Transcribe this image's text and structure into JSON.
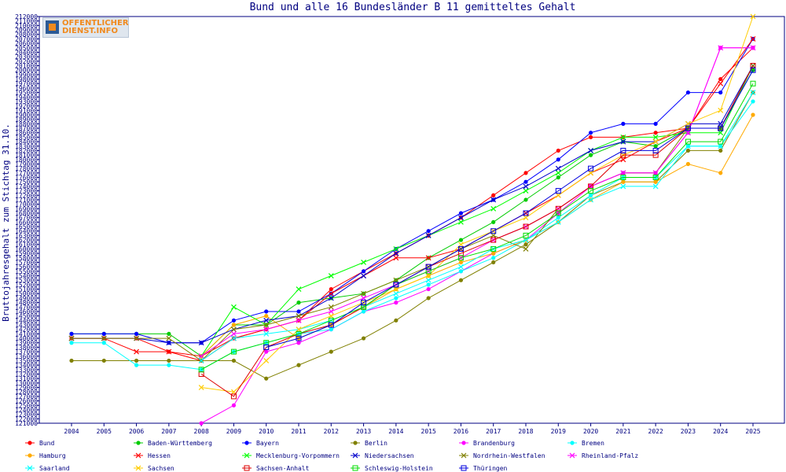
{
  "logo": {
    "line1": "OFFENTLICHER",
    "line2": "DIENST.INFO"
  },
  "chart_data": {
    "type": "line",
    "title": "Bund und alle 16 Bundesländer B 11 gemitteltes Gehalt",
    "xlabel": "",
    "ylabel": "Bruttojahresgehalt zum Stichtag 31.10.",
    "ylim": [
      121000,
      212000
    ],
    "y_tick_step": 1000,
    "grid": false,
    "legend_position": "bottom",
    "categories": [
      "2004",
      "2005",
      "2006",
      "2007",
      "2008",
      "2009",
      "2010",
      "2011",
      "2012",
      "2013",
      "2014",
      "2015",
      "2016",
      "2017",
      "2018",
      "2019",
      "2020",
      "2021",
      "2022",
      "2023",
      "2024",
      "2025"
    ],
    "series": [
      {
        "name": "Bund",
        "color": "#ff0000",
        "marker": "dot",
        "values": [
          140000,
          140000,
          140000,
          137000,
          135000,
          140000,
          142000,
          144000,
          151000,
          155000,
          159000,
          163000,
          167000,
          172000,
          177000,
          182000,
          185000,
          185000,
          186000,
          187000,
          198000,
          205000
        ]
      },
      {
        "name": "Baden-Württemberg",
        "color": "#00cc00",
        "marker": "dot",
        "values": [
          141000,
          141000,
          141000,
          141000,
          136000,
          143000,
          143000,
          148000,
          149000,
          150000,
          153000,
          158000,
          162000,
          166000,
          171000,
          176000,
          181000,
          184000,
          183000,
          187000,
          187000,
          200000
        ]
      },
      {
        "name": "Bayern",
        "color": "#0000ff",
        "marker": "dot",
        "values": [
          141000,
          141000,
          141000,
          139000,
          139000,
          144000,
          146000,
          146000,
          150000,
          155000,
          160000,
          164000,
          168000,
          171000,
          175000,
          180000,
          186000,
          188000,
          188000,
          195000,
          195000,
          207000
        ]
      },
      {
        "name": "Berlin",
        "color": "#808000",
        "marker": "dot",
        "values": [
          135000,
          135000,
          135000,
          135000,
          135000,
          135000,
          131000,
          134000,
          137000,
          140000,
          144000,
          149000,
          153000,
          157000,
          161000,
          166000,
          172000,
          175000,
          175000,
          182000,
          182000,
          195000
        ]
      },
      {
        "name": "Brandenburg",
        "color": "#ff00ff",
        "marker": "dot",
        "values": [
          null,
          null,
          null,
          null,
          121000,
          125000,
          137000,
          139000,
          142000,
          146000,
          148000,
          151000,
          155000,
          159000,
          162000,
          168000,
          174000,
          177000,
          177000,
          186000,
          205000,
          205000
        ]
      },
      {
        "name": "Bremen",
        "color": "#00ffff",
        "marker": "dot",
        "values": [
          139000,
          139000,
          134000,
          134000,
          133000,
          137000,
          139000,
          141000,
          142000,
          146000,
          149000,
          152000,
          155000,
          158000,
          162000,
          167000,
          172000,
          176000,
          176000,
          183000,
          183000,
          193000
        ]
      },
      {
        "name": "Hamburg",
        "color": "#ffaa00",
        "marker": "dot",
        "values": [
          null,
          null,
          null,
          null,
          136000,
          143000,
          145000,
          140000,
          143000,
          147000,
          151000,
          154000,
          157000,
          159000,
          162000,
          166000,
          171000,
          175000,
          175000,
          179000,
          177000,
          190000
        ]
      },
      {
        "name": "Hessen",
        "color": "#ff0000",
        "marker": "x",
        "values": [
          140000,
          140000,
          137000,
          137000,
          136000,
          140000,
          142000,
          144000,
          150000,
          154000,
          158000,
          158000,
          160000,
          164000,
          168000,
          172000,
          177000,
          180000,
          184000,
          187000,
          197000,
          207000
        ]
      },
      {
        "name": "Mecklenburg-Vorpommern",
        "color": "#00ff00",
        "marker": "x",
        "values": [
          null,
          null,
          null,
          null,
          136000,
          147000,
          143000,
          151000,
          154000,
          157000,
          160000,
          163000,
          166000,
          169000,
          173000,
          177000,
          182000,
          185000,
          185000,
          186000,
          186000,
          201000
        ]
      },
      {
        "name": "Niedersachsen",
        "color": "#0000cc",
        "marker": "x",
        "values": [
          140000,
          140000,
          140000,
          139000,
          139000,
          142000,
          144000,
          145000,
          149000,
          154000,
          159000,
          163000,
          167000,
          171000,
          174000,
          178000,
          182000,
          184000,
          184000,
          188000,
          188000,
          201000
        ]
      },
      {
        "name": "Nordrhein-Westfalen",
        "color": "#808000",
        "marker": "x",
        "values": [
          140000,
          140000,
          140000,
          140000,
          135000,
          142000,
          143000,
          145000,
          147000,
          150000,
          153000,
          156000,
          160000,
          163000,
          160000,
          169000,
          174000,
          177000,
          177000,
          187000,
          187000,
          201000
        ]
      },
      {
        "name": "Rheinland-Pfalz",
        "color": "#ff00ff",
        "marker": "x",
        "values": [
          null,
          null,
          null,
          null,
          136000,
          141000,
          142000,
          144000,
          146000,
          149000,
          152000,
          155000,
          158000,
          162000,
          165000,
          169000,
          174000,
          177000,
          177000,
          186000,
          205000,
          205000
        ]
      },
      {
        "name": "Saarland",
        "color": "#00ffff",
        "marker": "x",
        "values": [
          null,
          null,
          null,
          null,
          135000,
          140000,
          141000,
          142000,
          144000,
          147000,
          150000,
          153000,
          156000,
          160000,
          162000,
          166000,
          171000,
          174000,
          174000,
          183000,
          183000,
          195000
        ]
      },
      {
        "name": "Sachsen",
        "color": "#ffcc00",
        "marker": "x",
        "values": [
          null,
          null,
          null,
          null,
          129000,
          128000,
          135000,
          142000,
          145000,
          148000,
          151000,
          154000,
          161000,
          164000,
          167000,
          172000,
          177000,
          181000,
          184000,
          188000,
          191000,
          212000
        ]
      },
      {
        "name": "Sachsen-Anhalt",
        "color": "#dd0000",
        "marker": "square",
        "values": [
          null,
          null,
          null,
          null,
          132000,
          127000,
          138000,
          141000,
          143000,
          147000,
          152000,
          156000,
          159000,
          162000,
          165000,
          169000,
          174000,
          181000,
          181000,
          187000,
          187000,
          201000
        ]
      },
      {
        "name": "Schleswig-Holstein",
        "color": "#00dd00",
        "marker": "square",
        "values": [
          null,
          null,
          null,
          null,
          133000,
          137000,
          139000,
          141000,
          144000,
          147000,
          152000,
          155000,
          158000,
          160000,
          163000,
          168000,
          173000,
          176000,
          176000,
          184000,
          184000,
          197000
        ]
      },
      {
        "name": "Thüringen",
        "color": "#0000dd",
        "marker": "square",
        "values": [
          null,
          null,
          null,
          null,
          null,
          null,
          138000,
          140000,
          143000,
          148000,
          152000,
          156000,
          160000,
          164000,
          168000,
          173000,
          178000,
          182000,
          182000,
          187000,
          187000,
          200000
        ]
      }
    ]
  }
}
